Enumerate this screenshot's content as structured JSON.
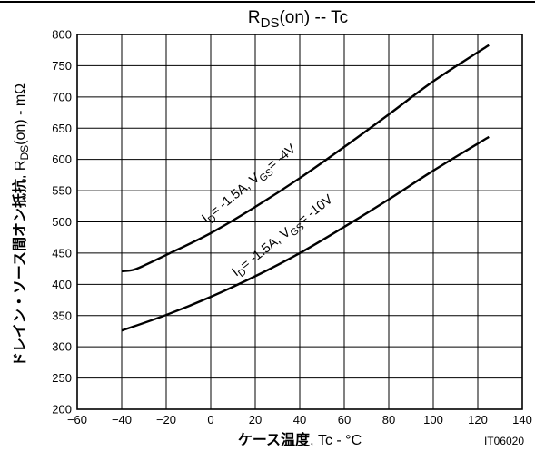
{
  "chart_data": {
    "type": "line",
    "title": {
      "main": "R",
      "sub": "DS",
      "tail": "(on)  --  Tc"
    },
    "xlabel": {
      "jp": "ケース温度",
      "rest": ", Tc - °C"
    },
    "ylabel": {
      "jp": "ドレイン・ソース間オン抵抗",
      "mid": ", R",
      "sub": "DS",
      "tail": "(on) - mΩ"
    },
    "xlim": [
      -60,
      140
    ],
    "ylim": [
      200,
      800
    ],
    "x_ticks": [
      -60,
      -40,
      -20,
      0,
      20,
      40,
      60,
      80,
      100,
      120,
      140
    ],
    "y_ticks": [
      200,
      250,
      300,
      350,
      400,
      450,
      500,
      550,
      600,
      650,
      700,
      750,
      800
    ],
    "grid": true,
    "series": [
      {
        "label_parts": [
          "I",
          "D",
          "= -1.5A, V",
          "GS",
          "= -4V"
        ],
        "x": [
          -40,
          -35,
          -30,
          -20,
          0,
          20,
          40,
          60,
          80,
          100,
          125
        ],
        "y": [
          421,
          423,
          430,
          447,
          482,
          524,
          570,
          620,
          672,
          725,
          783
        ]
      },
      {
        "label_parts": [
          "I",
          "D",
          "= -1.5A, V",
          "GS",
          "= -10V"
        ],
        "x": [
          -40,
          -20,
          0,
          20,
          40,
          60,
          80,
          100,
          125
        ],
        "y": [
          326,
          351,
          380,
          413,
          450,
          492,
          536,
          582,
          636
        ]
      }
    ],
    "code": "IT06020",
    "colors": {
      "line": "#000000",
      "background": "#ffffff"
    }
  }
}
